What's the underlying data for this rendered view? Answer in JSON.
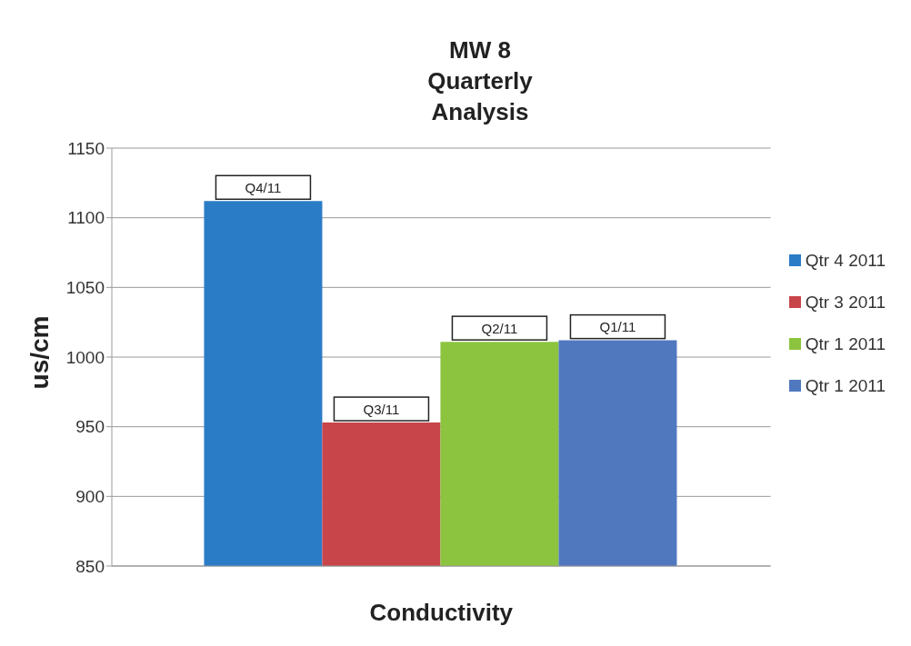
{
  "chart_data": {
    "type": "bar",
    "title": "MW 8 Quarterly Analysis",
    "xlabel": "Conductivity",
    "ylabel": "us/cm",
    "categories": [
      null
    ],
    "series": [
      {
        "name": "Qtr 4 2011",
        "color": "#2b7cc6",
        "values": [
          1112
        ],
        "value_labels": [
          "Q4/11"
        ]
      },
      {
        "name": "Qtr 3 2011",
        "color": "#c8454a",
        "values": [
          953
        ],
        "value_labels": [
          "Q3/11"
        ]
      },
      {
        "name": "Qtr 1 2011",
        "color": "#8cc43f",
        "values": [
          1011
        ],
        "value_labels": [
          "Q2/11"
        ]
      },
      {
        "name": "Qtr 1 2011",
        "color": "#4f78bf",
        "values": [
          1012
        ],
        "value_labels": [
          "Q1/11"
        ]
      }
    ],
    "ylim": [
      850,
      1150
    ],
    "yticks": [
      850,
      900,
      950,
      1000,
      1050,
      1100,
      1150
    ],
    "grid": "y",
    "legend": "right"
  }
}
